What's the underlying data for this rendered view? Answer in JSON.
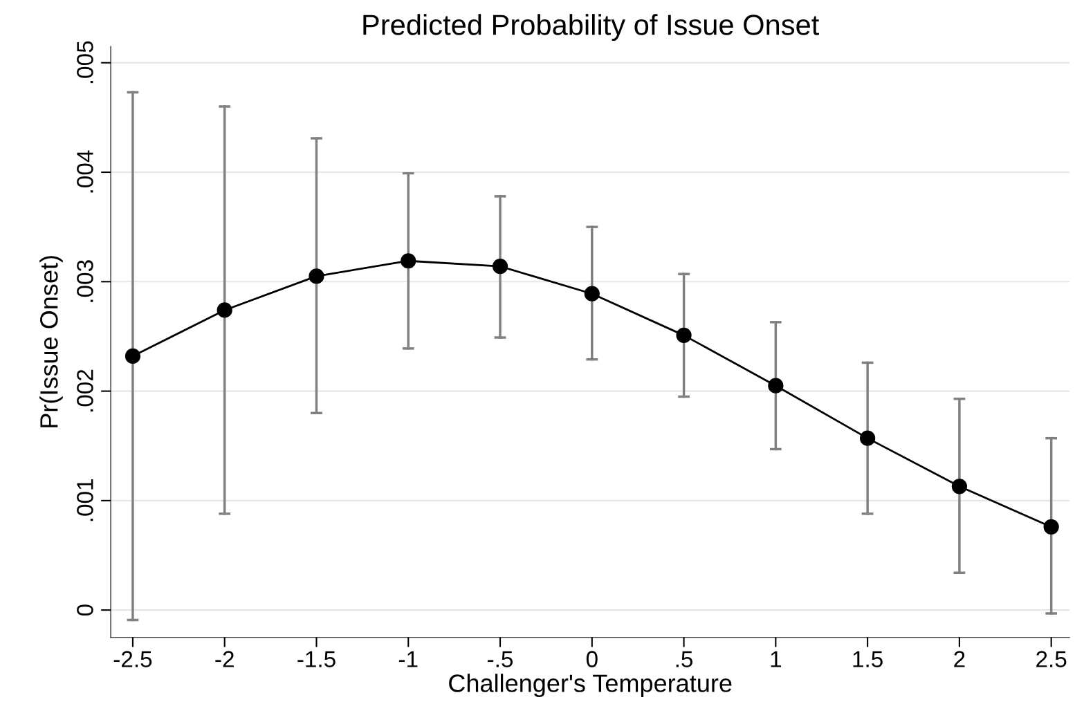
{
  "chart_data": {
    "type": "line",
    "title": "Predicted Probability of Issue Onset",
    "xlabel": "Challenger's Temperature",
    "ylabel": "Pr(Issue Onset)",
    "x": [
      -2.5,
      -2,
      -1.5,
      -1,
      -0.5,
      0,
      0.5,
      1,
      1.5,
      2,
      2.5
    ],
    "series": [
      {
        "color": "#000000",
        "values": [
          0.00232,
          0.00274,
          0.00305,
          0.00319,
          0.00314,
          0.00289,
          0.00251,
          0.00205,
          0.00157,
          0.00113,
          0.00076
        ],
        "errors": [
          [
            -9e-05,
            0.00473
          ],
          [
            0.00088,
            0.0046
          ],
          [
            0.0018,
            0.00431
          ],
          [
            0.00239,
            0.00399
          ],
          [
            0.00249,
            0.00378
          ],
          [
            0.00229,
            0.0035
          ],
          [
            0.00195,
            0.00307
          ],
          [
            0.00147,
            0.00263
          ],
          [
            0.00088,
            0.00226
          ],
          [
            0.00034,
            0.00193
          ],
          [
            -3e-05,
            0.00157
          ]
        ]
      }
    ],
    "xlim": [
      -2.62,
      2.6
    ],
    "ylim": [
      -0.00025,
      0.00515
    ],
    "xticks": [
      {
        "value": -2.5,
        "label": "-2.5"
      },
      {
        "value": -2,
        "label": "-2"
      },
      {
        "value": -1.5,
        "label": "-1.5"
      },
      {
        "value": -1,
        "label": "-1"
      },
      {
        "value": -0.5,
        "label": "-.5"
      },
      {
        "value": 0,
        "label": "0"
      },
      {
        "value": 0.5,
        "label": ".5"
      },
      {
        "value": 1,
        "label": "1"
      },
      {
        "value": 1.5,
        "label": "1.5"
      },
      {
        "value": 2,
        "label": "2"
      },
      {
        "value": 2.5,
        "label": "2.5"
      }
    ],
    "yticks": [
      {
        "value": 0,
        "label": "0"
      },
      {
        "value": 0.001,
        "label": ".001"
      },
      {
        "value": 0.002,
        "label": ".002"
      },
      {
        "value": 0.003,
        "label": ".003"
      },
      {
        "value": 0.004,
        "label": ".004"
      },
      {
        "value": 0.005,
        "label": ".005"
      }
    ],
    "grid": "y",
    "marker": "circle",
    "line_style": "solid",
    "legend": false
  }
}
